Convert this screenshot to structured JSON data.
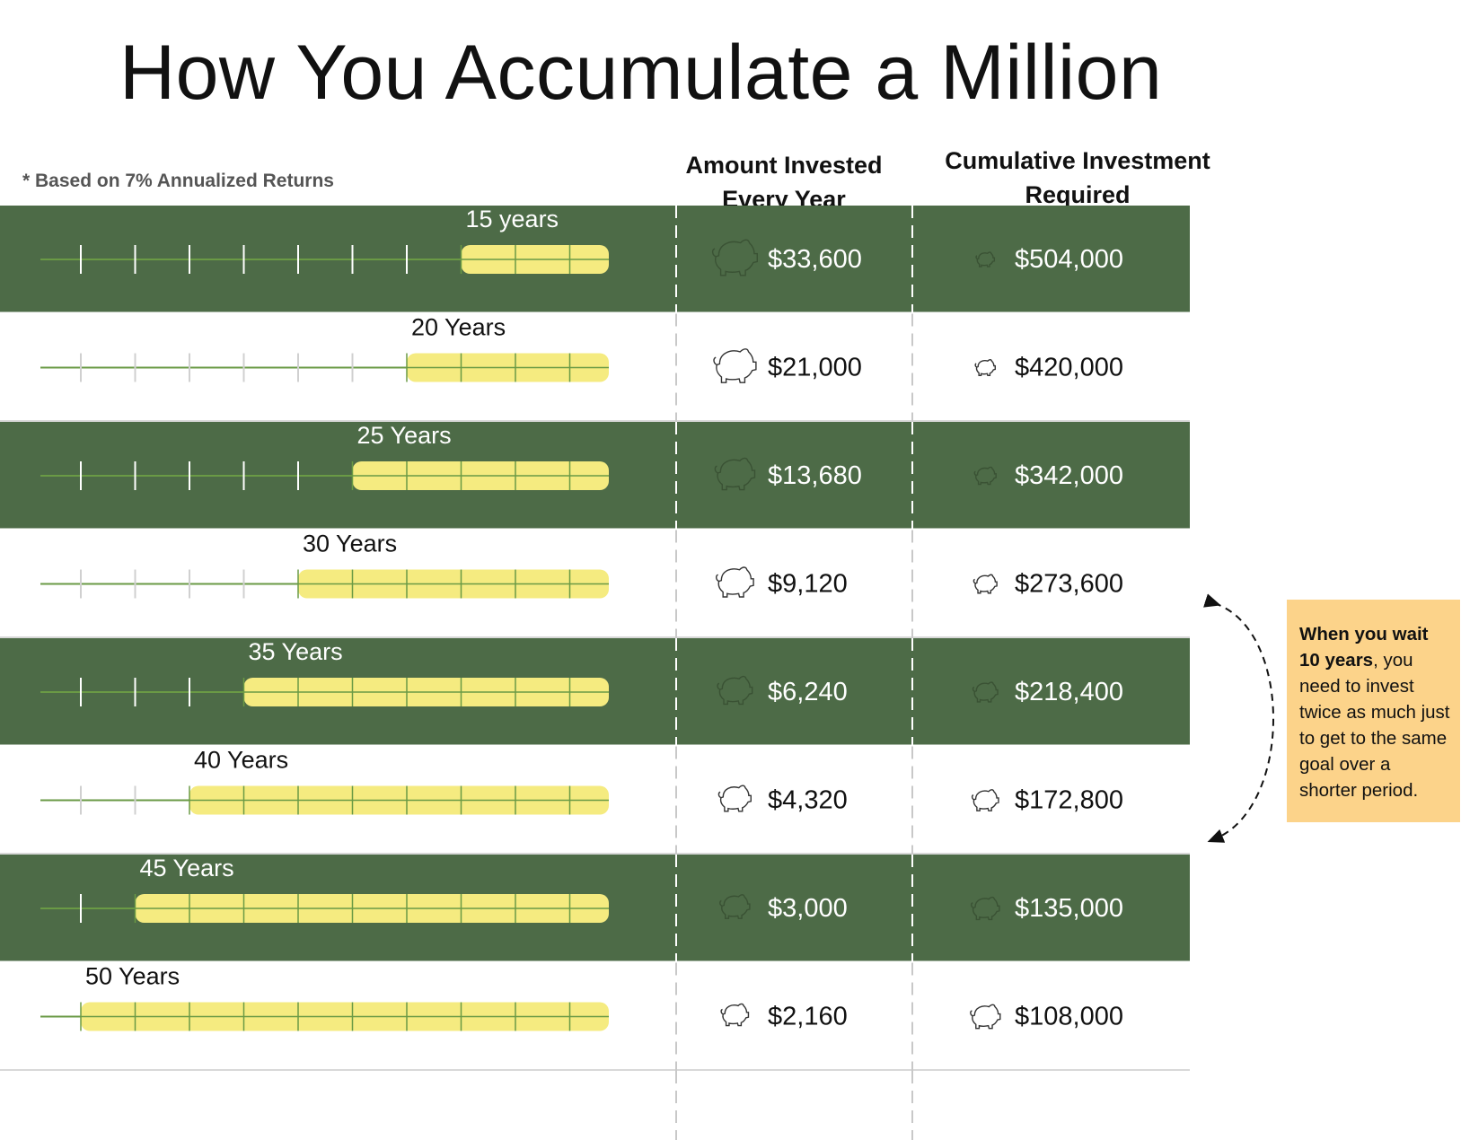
{
  "title": "How You Accumulate a Million",
  "footnote": "* Based on 7% Annualized Returns",
  "colors": {
    "dark_row": "#4d6b47",
    "bar_fill": "#f5eb80",
    "bar_line": "#6a9a45",
    "callout_bg": "#fcd38a"
  },
  "callout": {
    "bold": "When you wait 10 years",
    "text": ", you need to invest twice as much just to get to the same goal over a shorter period."
  },
  "chart_data": {
    "type": "table",
    "title": "How You Accumulate a Million",
    "columns": [
      "Amount Invested Every Year",
      "Cumulative Investment Required"
    ],
    "rows": [
      {
        "years": 15,
        "label": "15 years",
        "annual": "$33,600",
        "cumulative": "$504,000",
        "style": "dark"
      },
      {
        "years": 20,
        "label": "20 Years",
        "annual": "$21,000",
        "cumulative": "$420,000",
        "style": "light"
      },
      {
        "years": 25,
        "label": "25 Years",
        "annual": "$13,680",
        "cumulative": "$342,000",
        "style": "dark"
      },
      {
        "years": 30,
        "label": "30 Years",
        "annual": "$9,120",
        "cumulative": "$273,600",
        "style": "light"
      },
      {
        "years": 35,
        "label": "35 Years",
        "annual": "$6,240",
        "cumulative": "$218,400",
        "style": "dark"
      },
      {
        "years": 40,
        "label": "40 Years",
        "annual": "$4,320",
        "cumulative": "$172,800",
        "style": "light"
      },
      {
        "years": 45,
        "label": "45 Years",
        "annual": "$3,000",
        "cumulative": "$135,000",
        "style": "dark"
      },
      {
        "years": 50,
        "label": "50 Years",
        "annual": "$2,160",
        "cumulative": "$108,000",
        "style": "light"
      }
    ],
    "timeline_max_years": 50
  }
}
